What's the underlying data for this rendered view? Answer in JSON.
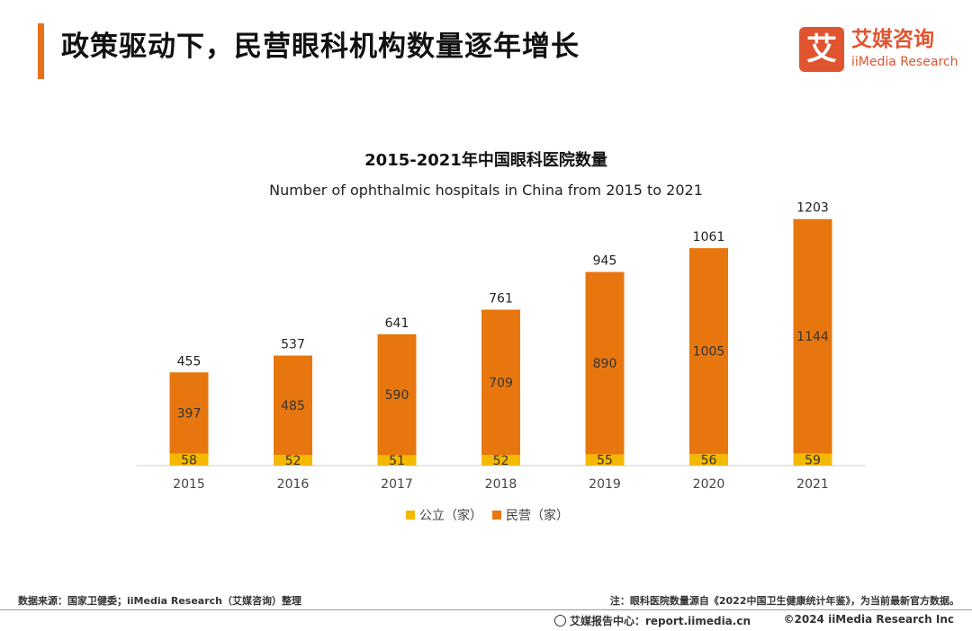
{
  "page": {
    "title": "政策驱动下，民营眼科机构数量逐年增长"
  },
  "logo": {
    "mark": "艾",
    "cn": "艾媒咨询",
    "en": "iiMedia Research"
  },
  "colors": {
    "accent": "#e8711a",
    "public": "#f5b800",
    "private": "#e8760f",
    "logo": "#e0542f"
  },
  "chart_data": {
    "type": "bar",
    "stacked": true,
    "title": "2015-2021年中国眼科医院数量",
    "subtitle": "Number of ophthalmic hospitals in China from 2015 to 2021",
    "categories": [
      "2015",
      "2016",
      "2017",
      "2018",
      "2019",
      "2020",
      "2021"
    ],
    "series": [
      {
        "name": "公立（家）",
        "values": [
          58,
          52,
          51,
          52,
          55,
          56,
          59
        ]
      },
      {
        "name": "民营（家）",
        "values": [
          397,
          485,
          590,
          709,
          890,
          1005,
          1144
        ]
      }
    ],
    "totals": [
      455,
      537,
      641,
      761,
      945,
      1061,
      1203
    ],
    "ylim": [
      0,
      1250
    ],
    "xlabel": "",
    "ylabel": "",
    "legend_position": "bottom-center",
    "grid": false
  },
  "footer": {
    "source": "数据来源：国家卫健委；iiMedia Research（艾媒咨询）整理",
    "note": "注：眼科医院数量源自《2022中国卫生健康统计年鉴》，为当前最新官方数据。",
    "report": "艾媒报告中心：report.iimedia.cn",
    "copyright": "©2024  iiMedia Research  Inc"
  }
}
